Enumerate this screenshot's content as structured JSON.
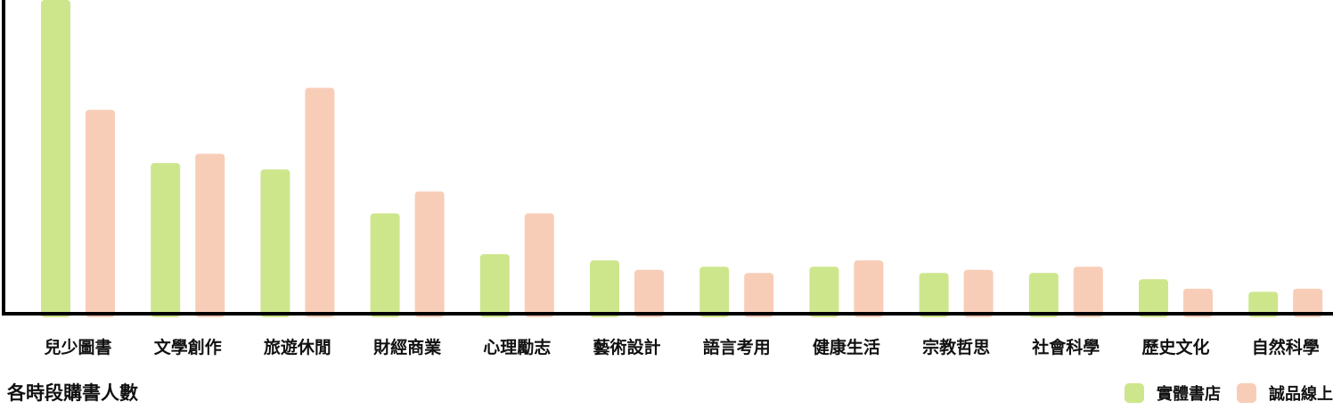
{
  "chart_data": {
    "type": "bar",
    "title": "各時段購書人數",
    "xlabel": "",
    "ylabel": "",
    "categories": [
      "兒少圖書",
      "文學創作",
      "旅遊休閒",
      "財經商業",
      "心理勵志",
      "藝術設計",
      "語言考用",
      "健康生活",
      "宗教哲思",
      "社會科學",
      "歷史文化",
      "自然科學"
    ],
    "series": [
      {
        "name": "實體書店",
        "color": "#cde68c",
        "values": [
          100,
          48,
          46,
          32,
          19,
          17,
          15,
          15,
          13,
          13,
          11,
          7
        ]
      },
      {
        "name": "誠品線上",
        "color": "#f8cdb8",
        "values": [
          65,
          51,
          72,
          39,
          32,
          14,
          13,
          17,
          14,
          15,
          8,
          8
        ]
      }
    ],
    "ylim": [
      0,
      100
    ],
    "grid": false,
    "axis_visible": [
      "left",
      "bottom"
    ],
    "legend_position": "bottom-right"
  }
}
